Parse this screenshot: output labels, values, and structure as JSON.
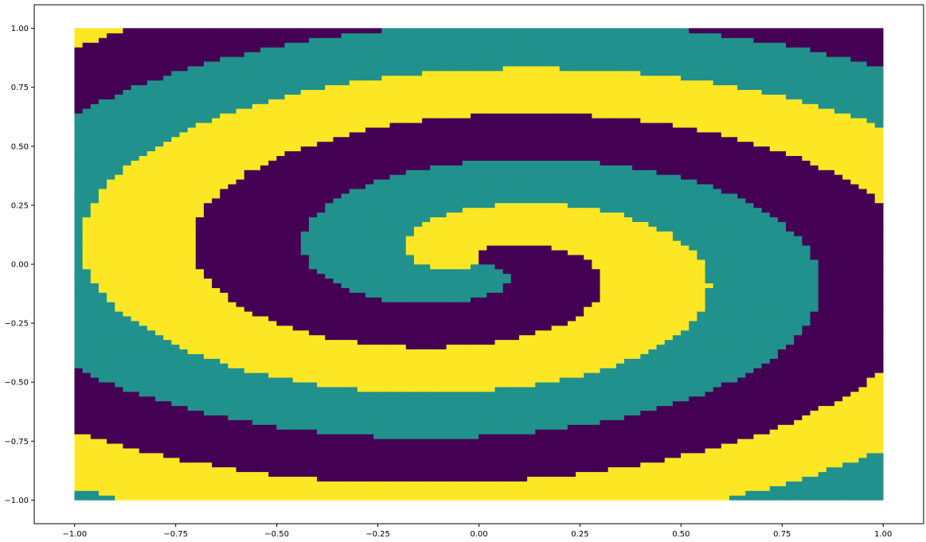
{
  "chart_data": {
    "type": "heatmap",
    "title": "",
    "xlabel": "",
    "ylabel": "",
    "xlim": [
      -1.1,
      1.1
    ],
    "ylim": [
      -1.1,
      1.1
    ],
    "grid": false,
    "x_ticks": [
      -1.0,
      -0.75,
      -0.5,
      -0.25,
      0.0,
      0.25,
      0.5,
      0.75,
      1.0
    ],
    "y_ticks": [
      -1.0,
      -0.75,
      -0.5,
      -0.25,
      0.0,
      0.25,
      0.5,
      0.75,
      1.0
    ],
    "x_tick_labels": [
      "−1.00",
      "−0.75",
      "−0.50",
      "−0.25",
      "0.00",
      "0.25",
      "0.50",
      "0.75",
      "1.00"
    ],
    "y_tick_labels": [
      "−1.00",
      "−0.75",
      "−0.50",
      "−0.25",
      "0.00",
      "0.25",
      "0.50",
      "0.75",
      "1.00"
    ],
    "grid_extent": {
      "x": [
        -1.0,
        1.0
      ],
      "y": [
        -1.0,
        1.0
      ]
    },
    "classes": [
      {
        "id": 0,
        "color": "#440154"
      },
      {
        "id": 1,
        "color": "#21918c"
      },
      {
        "id": 2,
        "color": "#fde725"
      }
    ],
    "spiral_model": {
      "num_arms": 3,
      "turns_per_unit_radius": 1.2,
      "aspect_y": 0.7,
      "class_order_by_angle": [
        0,
        2,
        1
      ]
    }
  }
}
